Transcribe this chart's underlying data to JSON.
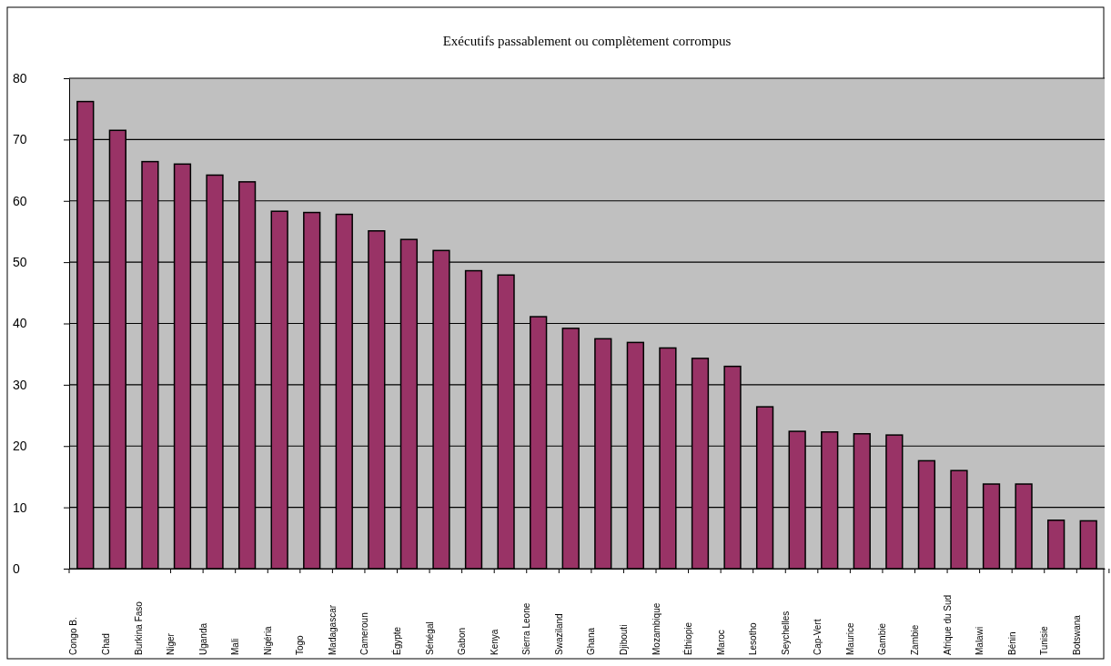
{
  "chart_data": {
    "type": "bar",
    "title": "Exécutifs passablement ou complètement corrompus",
    "categories": [
      "Congo B.",
      "Chad",
      "Burkina Faso",
      "Niger",
      "Uganda",
      "Mali",
      "Nigéria",
      "Togo",
      "Madagascar",
      "Cameroun",
      "Égypte",
      "Sénégal",
      "Gabon",
      "Kenya",
      "Sierra Leone",
      "Swaziland",
      "Ghana",
      "Djibouti",
      "Mozambique",
      "Éthiopie",
      "Maroc",
      "Lesotho",
      "Seychelles",
      "Cap-Vert",
      "Maurice",
      "Gambie",
      "Zambie",
      "Afrique du Sud",
      "Malawi",
      "Bénin",
      "Tunisie",
      "Botswana"
    ],
    "values": [
      76.2,
      71.5,
      66.4,
      66.0,
      64.2,
      63.1,
      58.3,
      58.1,
      57.8,
      55.1,
      53.7,
      51.9,
      48.6,
      47.9,
      41.1,
      39.2,
      37.5,
      36.9,
      36.0,
      34.3,
      33.0,
      26.4,
      22.4,
      22.3,
      22.0,
      21.8,
      17.6,
      16.0,
      13.8,
      13.8,
      7.9,
      7.8
    ],
    "color": "#993366",
    "ylim": [
      0,
      80
    ],
    "yticks": [
      0,
      10,
      20,
      30,
      40,
      50,
      60,
      70,
      80
    ],
    "grid": "y"
  }
}
